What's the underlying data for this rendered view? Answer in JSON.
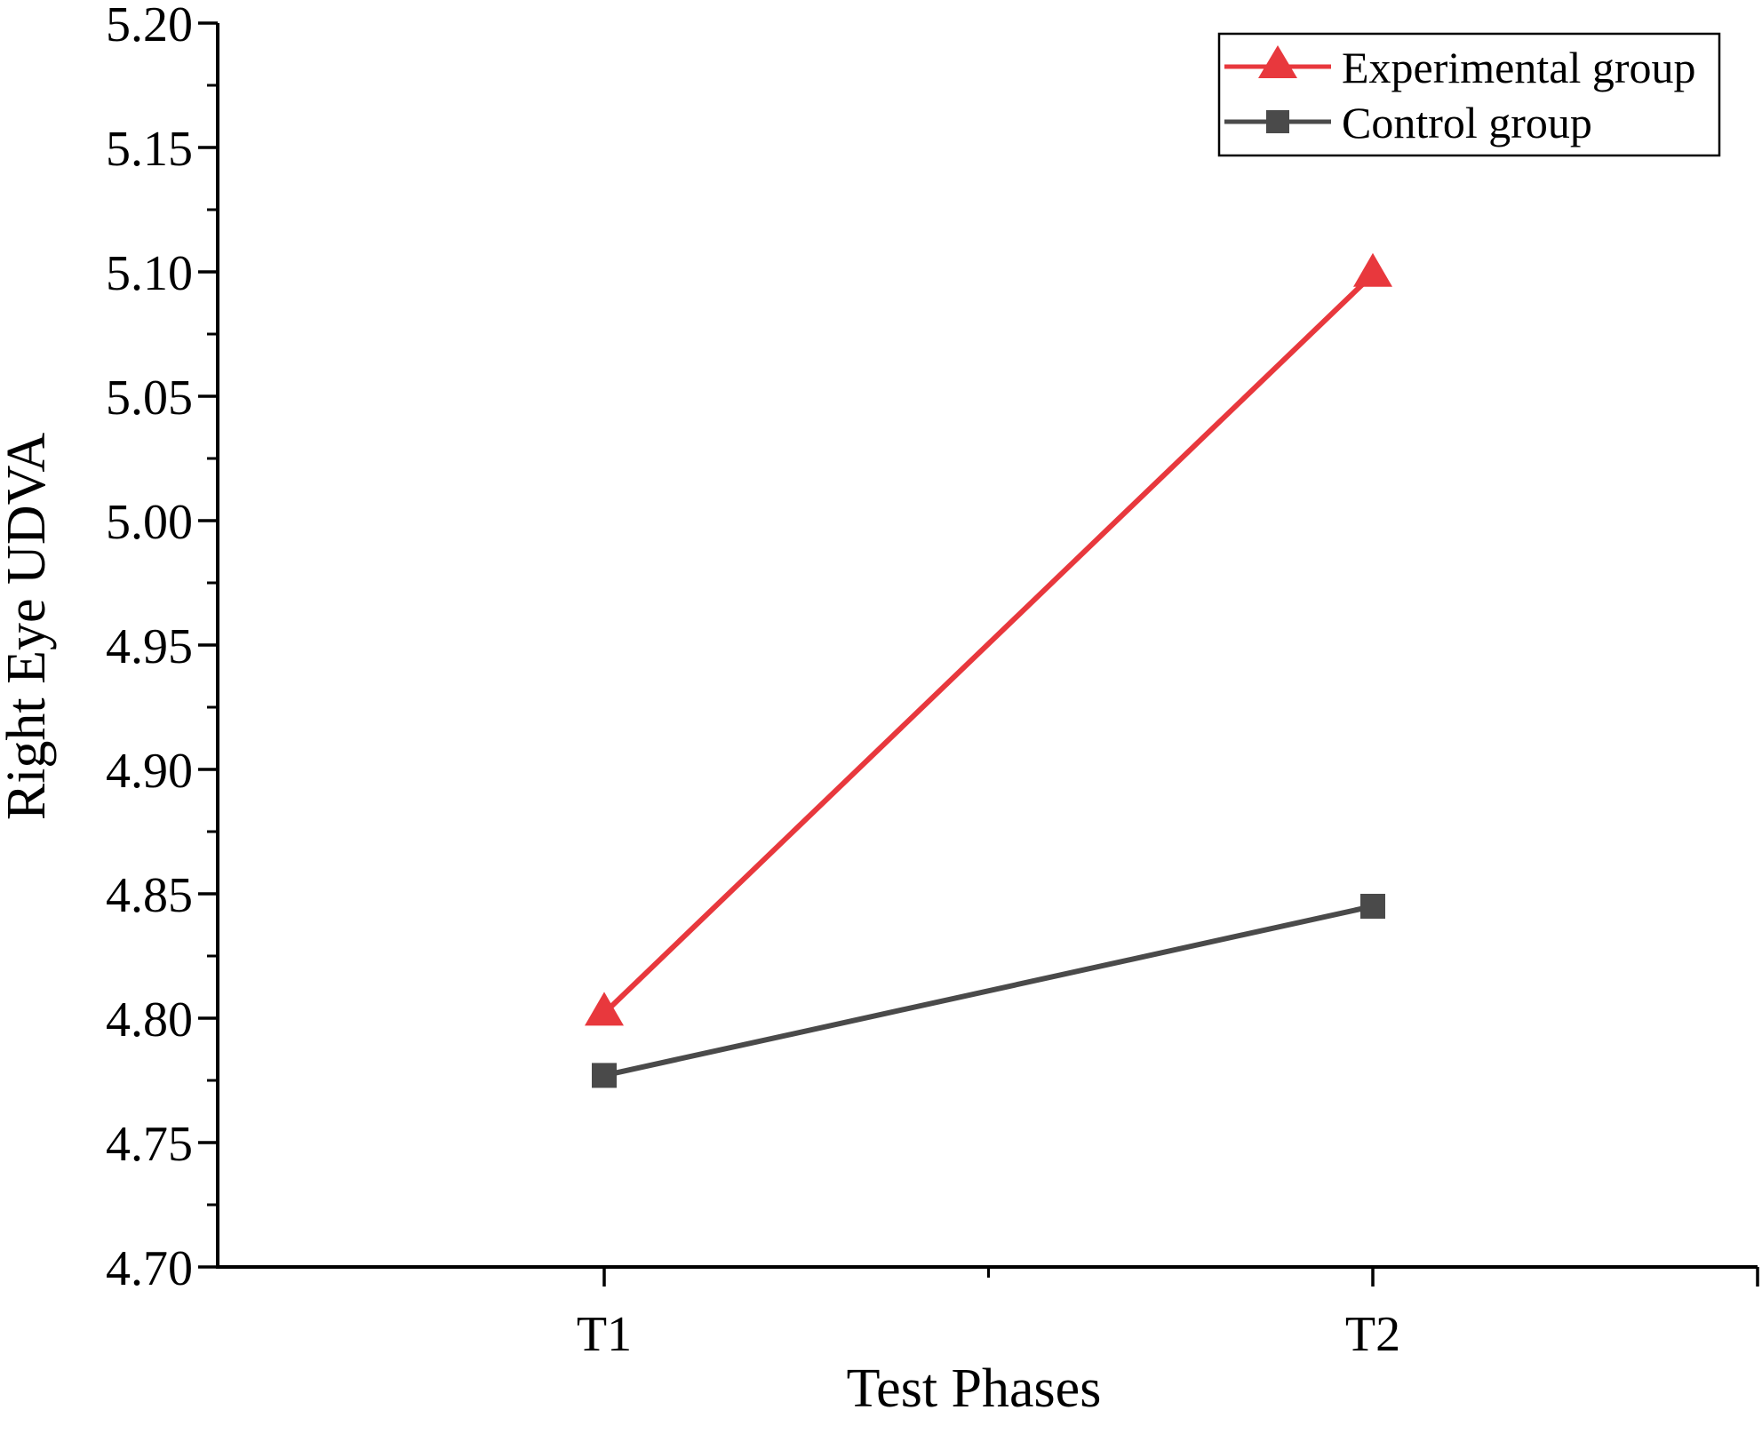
{
  "chart_data": {
    "type": "line",
    "title": "",
    "xlabel": "Test Phases",
    "ylabel": "Right Eye UDVA",
    "categories": [
      "T1",
      "T2"
    ],
    "ylim": [
      4.7,
      5.2
    ],
    "yticks": [
      "4.70",
      "4.75",
      "4.80",
      "4.85",
      "4.90",
      "4.95",
      "5.00",
      "5.05",
      "5.10",
      "5.15",
      "5.20"
    ],
    "grid": false,
    "legend_position": "top-right",
    "series": [
      {
        "name": "Experimental group",
        "values": [
          4.802,
          5.099
        ],
        "color": "#e8383d",
        "marker": "triangle"
      },
      {
        "name": "Control group",
        "values": [
          4.777,
          4.845
        ],
        "color": "#4a4a4a",
        "marker": "square"
      }
    ]
  }
}
